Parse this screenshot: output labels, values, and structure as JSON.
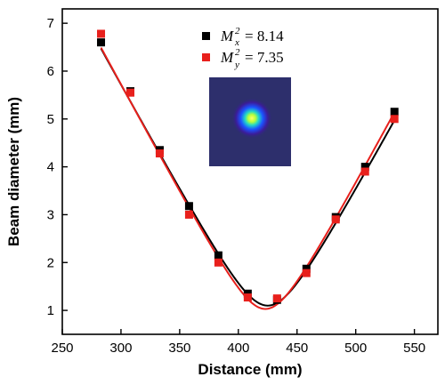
{
  "chart_data": {
    "type": "scatter",
    "xlabel": "Distance (mm)",
    "ylabel": "Beam diameter (mm)",
    "xlim": [
      250,
      570
    ],
    "ylim": [
      0.5,
      7.3
    ],
    "xticks": [
      250,
      300,
      350,
      400,
      450,
      500,
      550
    ],
    "yticks": [
      1,
      2,
      3,
      4,
      5,
      6,
      7
    ],
    "legend_placement": "top-right",
    "grid": false,
    "series": [
      {
        "legend_symbol": "M",
        "legend_subscript": "x",
        "legend_value": "= 8.14",
        "color": "#000000",
        "x": [
          283,
          308,
          333,
          358,
          383,
          408,
          433,
          458,
          483,
          508,
          533
        ],
        "y": [
          6.6,
          5.58,
          4.35,
          3.18,
          2.15,
          1.35,
          1.22,
          1.87,
          2.95,
          4.0,
          5.15
        ],
        "fit": {
          "w0": 1.1,
          "z0": 425,
          "zr": 24.5
        }
      },
      {
        "legend_symbol": "M",
        "legend_subscript": "y",
        "legend_value": "= 7.35",
        "color": "#e8201c",
        "x": [
          283,
          308,
          333,
          358,
          383,
          408,
          433,
          458,
          483,
          508,
          533
        ],
        "y": [
          6.78,
          5.55,
          4.28,
          3.0,
          2.0,
          1.27,
          1.25,
          1.78,
          2.9,
          3.9,
          5.0
        ],
        "fit": {
          "w0": 1.03,
          "z0": 423,
          "zr": 22.5
        }
      }
    ],
    "inset": {
      "description": "beam-profile-image",
      "colormap": [
        "#2b2e6e",
        "#1b4fff",
        "#14d9d0",
        "#e9ff3a",
        "#ffffff"
      ]
    }
  }
}
